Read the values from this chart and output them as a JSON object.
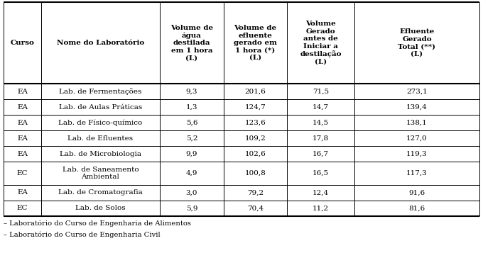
{
  "col_headers": [
    "Curso",
    "Nome do Laboratório",
    "Volume de\nágua\ndestilada\nem 1 hora\n(L)",
    "Volume de\nefluente\ngerado em\n1 hora (*)\n(L)",
    "Volume\nGerado\nantes de\nIniciar a\ndestilação\n(L)",
    "Efluente\nGerado\nTotal (**)\n(L)"
  ],
  "rows": [
    [
      "EA",
      "Lab. de Fermentações",
      "9,3",
      "201,6",
      "71,5",
      "273,1"
    ],
    [
      "EA",
      "Lab. de Aulas Práticas",
      "1,3",
      "124,7",
      "14,7",
      "139,4"
    ],
    [
      "EA",
      "Lab. de Físico-químico",
      "5,6",
      "123,6",
      "14,5",
      "138,1"
    ],
    [
      "EA",
      "Lab. de Efluentes",
      "5,2",
      "109,2",
      "17,8",
      "127,0"
    ],
    [
      "EA",
      "Lab. de Microbiologia",
      "9,9",
      "102,6",
      "16,7",
      "119,3"
    ],
    [
      "EC",
      "Lab. de Saneamento\nAmbiental",
      "4,9",
      "100,8",
      "16,5",
      "117,3"
    ],
    [
      "EA",
      "Lab. de Cromatografia",
      "3,0",
      "79,2",
      "12,4",
      "91,6"
    ],
    [
      "EC",
      "Lab. de Solos",
      "5,9",
      "70,4",
      "11,2",
      "81,6"
    ]
  ],
  "footnotes": [
    "– Laboratório do Curso de Engenharia de Alimentos",
    "– Laboratório do Curso de Engenharia Civil"
  ],
  "bg_color": "#ffffff",
  "line_color": "#000000",
  "font_size": 7.5,
  "header_font_size": 7.5
}
